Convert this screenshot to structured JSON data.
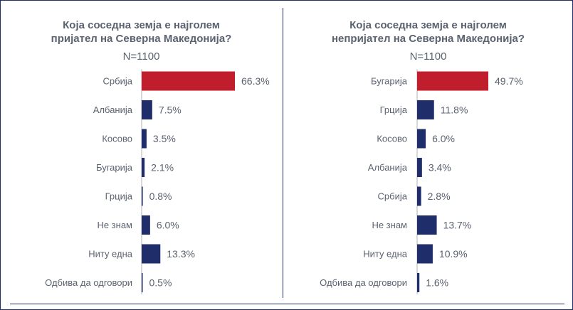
{
  "colors": {
    "highlight": "#c01e2d",
    "bar": "#1f2d6b",
    "text": "#5b6270",
    "axis": "#b0b0b0"
  },
  "chart_data": [
    {
      "type": "bar",
      "orientation": "horizontal",
      "title_lines": [
        "Која соседна земја е најголем",
        "пријател на Северна Македонија?"
      ],
      "subtitle": "N=1100",
      "categories": [
        "Србија",
        "Албанија",
        "Косово",
        "Бугарија",
        "Грција",
        "Не знам",
        "Ниту една",
        "Одбива да одговори"
      ],
      "values": [
        66.3,
        7.5,
        3.5,
        2.1,
        0.8,
        6.0,
        13.3,
        0.5
      ],
      "value_labels": [
        "66.3%",
        "7.5%",
        "3.5%",
        "2.1%",
        "0.8%",
        "6.0%",
        "13.3%",
        "0.5%"
      ],
      "highlight_index": 0,
      "unit": "%",
      "xlim": [
        0,
        66.3
      ],
      "grid": false,
      "legend": "none"
    },
    {
      "type": "bar",
      "orientation": "horizontal",
      "title_lines": [
        "Која соседна земја е најголем",
        "непријател на Северна Македонија?"
      ],
      "subtitle": "N=1100",
      "categories": [
        "Бугарија",
        "Грција",
        "Косово",
        "Албанија",
        "Србија",
        "Не знам",
        "Ниту една",
        "Одбива да одговори"
      ],
      "values": [
        49.7,
        11.8,
        6.0,
        3.4,
        2.8,
        13.7,
        10.9,
        1.6
      ],
      "value_labels": [
        "49.7%",
        "11.8%",
        "6.0%",
        "3.4%",
        "2.8%",
        "13.7%",
        "10.9%",
        "1.6%"
      ],
      "highlight_index": 0,
      "unit": "%",
      "xlim": [
        0,
        49.7
      ],
      "grid": false,
      "legend": "none"
    }
  ]
}
